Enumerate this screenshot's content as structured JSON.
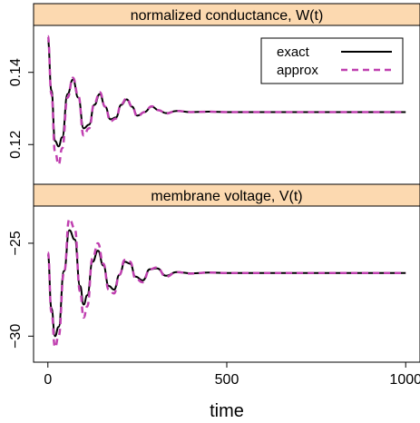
{
  "chart_data": [
    {
      "type": "line",
      "title": "normalized conductance, W(t)",
      "xlabel": "time",
      "ylabel": "",
      "xlim": [
        -40,
        1040
      ],
      "ylim": [
        0.109,
        0.153
      ],
      "xticks": [
        0,
        500,
        1000
      ],
      "yticks": [
        0.12,
        0.14
      ],
      "ytick_labels": [
        "0.12",
        "0.14"
      ],
      "legend_position": "top-right",
      "grid": false,
      "series": [
        {
          "name": "exact",
          "color": "#000000",
          "dash": "solid",
          "x": [
            0,
            10,
            20,
            30,
            40,
            55,
            70,
            85,
            100,
            115,
            130,
            145,
            160,
            175,
            190,
            205,
            220,
            235,
            250,
            270,
            290,
            310,
            330,
            360,
            400,
            450,
            500,
            600,
            700,
            800,
            900,
            1000
          ],
          "y": [
            0.149,
            0.135,
            0.121,
            0.1195,
            0.122,
            0.134,
            0.138,
            0.133,
            0.1245,
            0.1255,
            0.131,
            0.134,
            0.1305,
            0.127,
            0.1275,
            0.131,
            0.1325,
            0.1305,
            0.128,
            0.129,
            0.1305,
            0.1295,
            0.1287,
            0.1293,
            0.129,
            0.1291,
            0.129,
            0.129,
            0.129,
            0.129,
            0.129,
            0.129
          ]
        },
        {
          "name": "approx",
          "color": "#c040b0",
          "dash": "dashed",
          "x": [
            0,
            10,
            20,
            30,
            40,
            55,
            70,
            85,
            100,
            115,
            130,
            145,
            160,
            175,
            190,
            205,
            220,
            235,
            250,
            270,
            290,
            310,
            330,
            360,
            400,
            450,
            500,
            600,
            700,
            800,
            900,
            1000
          ],
          "y": [
            0.15,
            0.134,
            0.118,
            0.1145,
            0.119,
            0.133,
            0.1385,
            0.1335,
            0.1225,
            0.1245,
            0.1315,
            0.1345,
            0.1305,
            0.1265,
            0.1272,
            0.1312,
            0.1328,
            0.1306,
            0.1278,
            0.129,
            0.1306,
            0.1295,
            0.1286,
            0.1293,
            0.129,
            0.1291,
            0.129,
            0.129,
            0.129,
            0.129,
            0.129,
            0.129
          ]
        }
      ]
    },
    {
      "type": "line",
      "title": "membrane voltage, V(t)",
      "xlabel": "time",
      "ylabel": "",
      "xlim": [
        -40,
        1040
      ],
      "ylim": [
        -31.4,
        -23.0
      ],
      "xticks": [
        0,
        500,
        1000
      ],
      "xtick_labels": [
        "0",
        "500",
        "1000"
      ],
      "yticks": [
        -30,
        -25
      ],
      "ytick_labels": [
        "−30",
        "−25"
      ],
      "grid": false,
      "series": [
        {
          "name": "exact",
          "color": "#000000",
          "dash": "solid",
          "x": [
            0,
            10,
            20,
            30,
            45,
            60,
            75,
            90,
            100,
            110,
            125,
            140,
            155,
            170,
            185,
            200,
            215,
            230,
            245,
            265,
            285,
            305,
            330,
            360,
            400,
            450,
            500,
            600,
            700,
            800,
            900,
            1000
          ],
          "y": [
            -25.6,
            -28.5,
            -30.0,
            -29.5,
            -26.5,
            -24.3,
            -24.8,
            -27.3,
            -28.3,
            -27.8,
            -26.0,
            -25.4,
            -26.2,
            -27.3,
            -27.5,
            -26.7,
            -26.0,
            -26.1,
            -26.8,
            -27.0,
            -26.4,
            -26.35,
            -26.75,
            -26.55,
            -26.62,
            -26.58,
            -26.6,
            -26.6,
            -26.6,
            -26.6,
            -26.6,
            -26.6
          ]
        },
        {
          "name": "approx",
          "color": "#c040b0",
          "dash": "dashed",
          "x": [
            0,
            10,
            20,
            30,
            45,
            60,
            75,
            90,
            100,
            110,
            125,
            140,
            155,
            170,
            185,
            200,
            215,
            230,
            245,
            265,
            285,
            305,
            330,
            360,
            400,
            450,
            500,
            600,
            700,
            800,
            900,
            1000
          ],
          "y": [
            -25.5,
            -28.7,
            -30.6,
            -30.0,
            -26.6,
            -23.7,
            -24.2,
            -27.6,
            -29.0,
            -28.4,
            -25.8,
            -25.0,
            -26.1,
            -27.5,
            -27.7,
            -26.7,
            -25.9,
            -26.0,
            -26.9,
            -27.1,
            -26.4,
            -26.3,
            -26.8,
            -26.55,
            -26.63,
            -26.58,
            -26.6,
            -26.6,
            -26.6,
            -26.6,
            -26.6,
            -26.6
          ]
        }
      ]
    }
  ]
}
